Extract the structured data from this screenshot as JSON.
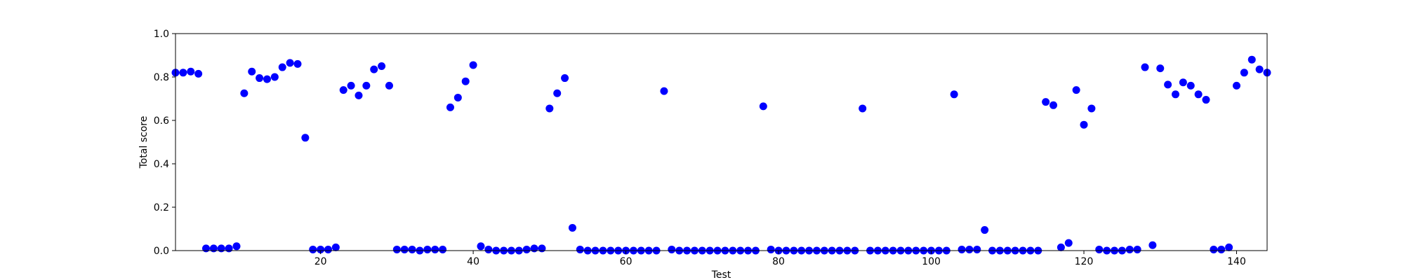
{
  "chart_data": {
    "type": "scatter",
    "title": "",
    "xlabel": "Test",
    "ylabel": "Total score",
    "xlim": [
      1,
      144
    ],
    "ylim": [
      0.0,
      1.0
    ],
    "x_ticks": [
      20,
      40,
      60,
      80,
      100,
      120,
      140
    ],
    "x_tick_labels": [
      "20",
      "40",
      "60",
      "80",
      "100",
      "120",
      "140"
    ],
    "y_ticks": [
      0.0,
      0.2,
      0.4,
      0.6,
      0.8,
      1.0
    ],
    "y_tick_labels": [
      "0.0",
      "0.2",
      "0.4",
      "0.6",
      "0.8",
      "1.0"
    ],
    "grid": false,
    "marker_color": "#0000ff",
    "series": [
      {
        "x": [
          1,
          2,
          3,
          4,
          5,
          6,
          7,
          8,
          9,
          10,
          11,
          12,
          13,
          14,
          15,
          16,
          17,
          18,
          19,
          20,
          21,
          22,
          23,
          24,
          25,
          26,
          27,
          28,
          29,
          30,
          31,
          32,
          33,
          34,
          35,
          36,
          37,
          38,
          39,
          40,
          41,
          42,
          43,
          44,
          45,
          46,
          47,
          48,
          49,
          50,
          51,
          52,
          53,
          54,
          55,
          56,
          57,
          58,
          59,
          60,
          61,
          62,
          63,
          64,
          65,
          66,
          67,
          68,
          69,
          70,
          71,
          72,
          73,
          74,
          75,
          76,
          77,
          78,
          79,
          80,
          81,
          82,
          83,
          84,
          85,
          86,
          87,
          88,
          89,
          90,
          91,
          92,
          93,
          94,
          95,
          96,
          97,
          98,
          99,
          100,
          101,
          102,
          103,
          104,
          105,
          106,
          107,
          108,
          109,
          110,
          111,
          112,
          113,
          114,
          115,
          116,
          117,
          118,
          119,
          120,
          121,
          122,
          123,
          124,
          125,
          126,
          127,
          128,
          129,
          130,
          131,
          132,
          133,
          134,
          135,
          136,
          137,
          138,
          139,
          140,
          141,
          142,
          143,
          144
        ],
        "y": [
          0.82,
          0.82,
          0.825,
          0.815,
          0.01,
          0.01,
          0.01,
          0.01,
          0.02,
          0.725,
          0.825,
          0.795,
          0.79,
          0.8,
          0.845,
          0.865,
          0.86,
          0.52,
          0.005,
          0.005,
          0.005,
          0.015,
          0.74,
          0.76,
          0.715,
          0.76,
          0.835,
          0.85,
          0.76,
          0.005,
          0.005,
          0.005,
          0.0,
          0.005,
          0.005,
          0.005,
          0.66,
          0.705,
          0.78,
          0.855,
          0.02,
          0.005,
          0.0,
          0.0,
          0.0,
          0.0,
          0.005,
          0.01,
          0.01,
          0.655,
          0.725,
          0.795,
          0.105,
          0.005,
          0.0,
          0.0,
          0.0,
          0.0,
          0.0,
          0.0,
          0.0,
          0.0,
          0.0,
          0.0,
          0.735,
          0.005,
          0.0,
          0.0,
          0.0,
          0.0,
          0.0,
          0.0,
          0.0,
          0.0,
          0.0,
          0.0,
          0.0,
          0.665,
          0.005,
          0.0,
          0.0,
          0.0,
          0.0,
          0.0,
          0.0,
          0.0,
          0.0,
          0.0,
          0.0,
          0.0,
          0.655,
          0.0,
          0.0,
          0.0,
          0.0,
          0.0,
          0.0,
          0.0,
          0.0,
          0.0,
          0.0,
          0.0,
          0.72,
          0.005,
          0.005,
          0.005,
          0.095,
          0.0,
          0.0,
          0.0,
          0.0,
          0.0,
          0.0,
          0.0,
          0.685,
          0.67,
          0.015,
          0.035,
          0.74,
          0.58,
          0.655,
          0.005,
          0.0,
          0.0,
          0.0,
          0.005,
          0.005,
          0.845,
          0.025,
          0.84,
          0.765,
          0.72,
          0.775,
          0.76,
          0.72,
          0.695,
          0.005,
          0.005,
          0.015,
          0.76,
          0.82,
          0.88,
          0.835,
          0.82
        ]
      }
    ]
  }
}
